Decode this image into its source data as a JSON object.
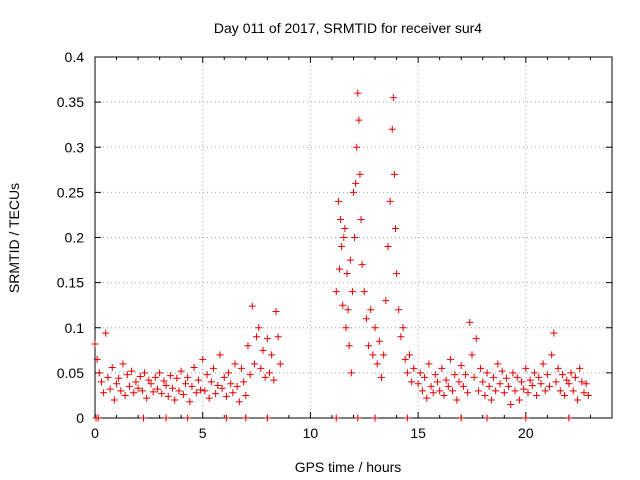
{
  "chart_data": {
    "type": "scatter",
    "title": "Day 011 of 2017, SRMTID for receiver sur4",
    "xlabel": "GPS time / hours",
    "ylabel": "SRMTID / TECUs",
    "xlim": [
      0,
      24
    ],
    "ylim": [
      0,
      0.4
    ],
    "xticks": [
      0,
      5,
      10,
      15,
      20
    ],
    "yticks": [
      0,
      0.05,
      0.1,
      0.15,
      0.2,
      0.25,
      0.3,
      0.35,
      0.4
    ],
    "xtick_labels": [
      "0",
      "5",
      "10",
      "15",
      "20"
    ],
    "ytick_labels": [
      "0",
      "0.05",
      "0.1",
      "0.15",
      "0.2",
      "0.25",
      "0.3",
      "0.35",
      "0.4"
    ],
    "grid": true,
    "marker": "+",
    "color": "#e00000",
    "series": [
      {
        "name": "SRMTID",
        "points": [
          [
            0.0,
            0.082
          ],
          [
            0.1,
            0.065
          ],
          [
            0.2,
            0.05
          ],
          [
            0.3,
            0.04
          ],
          [
            0.4,
            0.028
          ],
          [
            0.5,
            0.094
          ],
          [
            0.6,
            0.045
          ],
          [
            0.7,
            0.032
          ],
          [
            0.8,
            0.056
          ],
          [
            0.9,
            0.02
          ],
          [
            1.0,
            0.038
          ],
          [
            1.1,
            0.044
          ],
          [
            1.2,
            0.03
          ],
          [
            1.3,
            0.06
          ],
          [
            1.4,
            0.025
          ],
          [
            1.5,
            0.048
          ],
          [
            1.6,
            0.035
          ],
          [
            1.7,
            0.052
          ],
          [
            1.8,
            0.028
          ],
          [
            1.9,
            0.04
          ],
          [
            2.0,
            0.033
          ],
          [
            2.1,
            0.046
          ],
          [
            2.2,
            0.03
          ],
          [
            2.3,
            0.05
          ],
          [
            2.4,
            0.022
          ],
          [
            2.5,
            0.042
          ],
          [
            2.6,
            0.038
          ],
          [
            2.7,
            0.029
          ],
          [
            2.8,
            0.045
          ],
          [
            2.9,
            0.032
          ],
          [
            3.0,
            0.05
          ],
          [
            3.1,
            0.027
          ],
          [
            3.2,
            0.041
          ],
          [
            3.3,
            0.036
          ],
          [
            3.4,
            0.024
          ],
          [
            3.5,
            0.047
          ],
          [
            3.6,
            0.033
          ],
          [
            3.7,
            0.02
          ],
          [
            3.8,
            0.044
          ],
          [
            3.9,
            0.03
          ],
          [
            4.0,
            0.052
          ],
          [
            4.1,
            0.026
          ],
          [
            4.2,
            0.038
          ],
          [
            4.3,
            0.045
          ],
          [
            4.4,
            0.018
          ],
          [
            4.5,
            0.035
          ],
          [
            4.6,
            0.056
          ],
          [
            4.7,
            0.028
          ],
          [
            4.8,
            0.042
          ],
          [
            4.9,
            0.031
          ],
          [
            5.0,
            0.065
          ],
          [
            5.1,
            0.03
          ],
          [
            5.2,
            0.048
          ],
          [
            5.3,
            0.022
          ],
          [
            5.4,
            0.04
          ],
          [
            5.5,
            0.055
          ],
          [
            5.6,
            0.027
          ],
          [
            5.7,
            0.036
          ],
          [
            5.8,
            0.07
          ],
          [
            5.9,
            0.033
          ],
          [
            6.0,
            0.045
          ],
          [
            6.1,
            0.024
          ],
          [
            6.2,
            0.05
          ],
          [
            6.3,
            0.038
          ],
          [
            6.4,
            0.028
          ],
          [
            6.5,
            0.06
          ],
          [
            6.6,
            0.035
          ],
          [
            6.7,
            0.018
          ],
          [
            6.8,
            0.055
          ],
          [
            6.9,
            0.04
          ],
          [
            7.0,
            0.025
          ],
          [
            7.1,
            0.08
          ],
          [
            7.2,
            0.048
          ],
          [
            7.3,
            0.124
          ],
          [
            7.4,
            0.06
          ],
          [
            7.5,
            0.09
          ],
          [
            7.6,
            0.1
          ],
          [
            7.7,
            0.055
          ],
          [
            7.8,
            0.075
          ],
          [
            7.9,
            0.045
          ],
          [
            8.0,
            0.088
          ],
          [
            8.1,
            0.05
          ],
          [
            8.2,
            0.07
          ],
          [
            8.3,
            0.042
          ],
          [
            8.4,
            0.118
          ],
          [
            8.5,
            0.09
          ],
          [
            8.6,
            0.06
          ],
          [
            11.2,
            0.14
          ],
          [
            11.3,
            0.24
          ],
          [
            11.35,
            0.165
          ],
          [
            11.4,
            0.22
          ],
          [
            11.45,
            0.19
          ],
          [
            11.5,
            0.125
          ],
          [
            11.55,
            0.2
          ],
          [
            11.6,
            0.21
          ],
          [
            11.65,
            0.1
          ],
          [
            11.7,
            0.16
          ],
          [
            11.75,
            0.12
          ],
          [
            11.8,
            0.08
          ],
          [
            11.85,
            0.175
          ],
          [
            11.9,
            0.05
          ],
          [
            11.95,
            0.14
          ],
          [
            12.0,
            0.25
          ],
          [
            12.05,
            0.2
          ],
          [
            12.1,
            0.26
          ],
          [
            12.15,
            0.3
          ],
          [
            12.2,
            0.36
          ],
          [
            12.25,
            0.33
          ],
          [
            12.3,
            0.27
          ],
          [
            12.35,
            0.22
          ],
          [
            12.4,
            0.17
          ],
          [
            12.5,
            0.14
          ],
          [
            12.6,
            0.11
          ],
          [
            12.7,
            0.08
          ],
          [
            12.8,
            0.12
          ],
          [
            12.9,
            0.07
          ],
          [
            13.0,
            0.1
          ],
          [
            13.1,
            0.06
          ],
          [
            13.2,
            0.085
          ],
          [
            13.3,
            0.045
          ],
          [
            13.4,
            0.07
          ],
          [
            13.5,
            0.13
          ],
          [
            13.6,
            0.19
          ],
          [
            13.7,
            0.24
          ],
          [
            13.8,
            0.32
          ],
          [
            13.85,
            0.355
          ],
          [
            13.9,
            0.27
          ],
          [
            13.95,
            0.21
          ],
          [
            14.0,
            0.16
          ],
          [
            14.1,
            0.12
          ],
          [
            14.2,
            0.09
          ],
          [
            14.3,
            0.1
          ],
          [
            14.4,
            0.065
          ],
          [
            14.5,
            0.05
          ],
          [
            14.6,
            0.07
          ],
          [
            14.7,
            0.04
          ],
          [
            14.8,
            0.055
          ],
          [
            15.0,
            0.038
          ],
          [
            15.1,
            0.05
          ],
          [
            15.2,
            0.03
          ],
          [
            15.3,
            0.045
          ],
          [
            15.4,
            0.022
          ],
          [
            15.5,
            0.06
          ],
          [
            15.6,
            0.035
          ],
          [
            15.7,
            0.028
          ],
          [
            15.8,
            0.048
          ],
          [
            15.9,
            0.04
          ],
          [
            16.0,
            0.03
          ],
          [
            16.1,
            0.055
          ],
          [
            16.2,
            0.025
          ],
          [
            16.3,
            0.042
          ],
          [
            16.4,
            0.035
          ],
          [
            16.5,
            0.065
          ],
          [
            16.6,
            0.03
          ],
          [
            16.7,
            0.048
          ],
          [
            16.8,
            0.02
          ],
          [
            16.9,
            0.04
          ],
          [
            17.0,
            0.058
          ],
          [
            17.1,
            0.035
          ],
          [
            17.2,
            0.048
          ],
          [
            17.3,
            0.028
          ],
          [
            17.4,
            0.106
          ],
          [
            17.5,
            0.07
          ],
          [
            17.6,
            0.045
          ],
          [
            17.7,
            0.088
          ],
          [
            17.8,
            0.03
          ],
          [
            17.9,
            0.055
          ],
          [
            18.0,
            0.04
          ],
          [
            18.1,
            0.025
          ],
          [
            18.2,
            0.05
          ],
          [
            18.3,
            0.035
          ],
          [
            18.4,
            0.02
          ],
          [
            18.5,
            0.045
          ],
          [
            18.6,
            0.03
          ],
          [
            18.7,
            0.06
          ],
          [
            18.8,
            0.038
          ],
          [
            18.9,
            0.052
          ],
          [
            19.0,
            0.028
          ],
          [
            19.1,
            0.044
          ],
          [
            19.2,
            0.035
          ],
          [
            19.3,
            0.015
          ],
          [
            19.4,
            0.05
          ],
          [
            19.5,
            0.03
          ],
          [
            19.6,
            0.045
          ],
          [
            19.7,
            0.02
          ],
          [
            19.8,
            0.04
          ],
          [
            19.9,
            0.032
          ],
          [
            20.0,
            0.055
          ],
          [
            20.1,
            0.028
          ],
          [
            20.2,
            0.042
          ],
          [
            20.3,
            0.036
          ],
          [
            20.4,
            0.05
          ],
          [
            20.5,
            0.025
          ],
          [
            20.6,
            0.045
          ],
          [
            20.7,
            0.038
          ],
          [
            20.8,
            0.06
          ],
          [
            20.9,
            0.03
          ],
          [
            21.0,
            0.048
          ],
          [
            21.1,
            0.035
          ],
          [
            21.2,
            0.07
          ],
          [
            21.3,
            0.094
          ],
          [
            21.4,
            0.04
          ],
          [
            21.5,
            0.055
          ],
          [
            21.6,
            0.03
          ],
          [
            21.7,
            0.048
          ],
          [
            21.8,
            0.025
          ],
          [
            21.9,
            0.042
          ],
          [
            22.0,
            0.038
          ],
          [
            22.1,
            0.05
          ],
          [
            22.2,
            0.03
          ],
          [
            22.3,
            0.045
          ],
          [
            22.4,
            0.02
          ],
          [
            22.5,
            0.055
          ],
          [
            22.6,
            0.04
          ],
          [
            22.7,
            0.028
          ],
          [
            22.8,
            0.038
          ],
          [
            22.9,
            0.025
          ],
          [
            0.05,
            0.0
          ],
          [
            0.15,
            0.0
          ],
          [
            2.25,
            0.0
          ],
          [
            3.3,
            0.0
          ],
          [
            4.3,
            0.0
          ],
          [
            6.1,
            0.0
          ],
          [
            7.0,
            0.0
          ],
          [
            8.0,
            0.0
          ],
          [
            11.2,
            0.0
          ],
          [
            12.2,
            0.0
          ],
          [
            13.0,
            0.0
          ],
          [
            14.5,
            0.0
          ],
          [
            17.0,
            0.0
          ],
          [
            18.2,
            0.0
          ],
          [
            20.0,
            0.0
          ],
          [
            22.0,
            0.0
          ]
        ]
      }
    ]
  }
}
